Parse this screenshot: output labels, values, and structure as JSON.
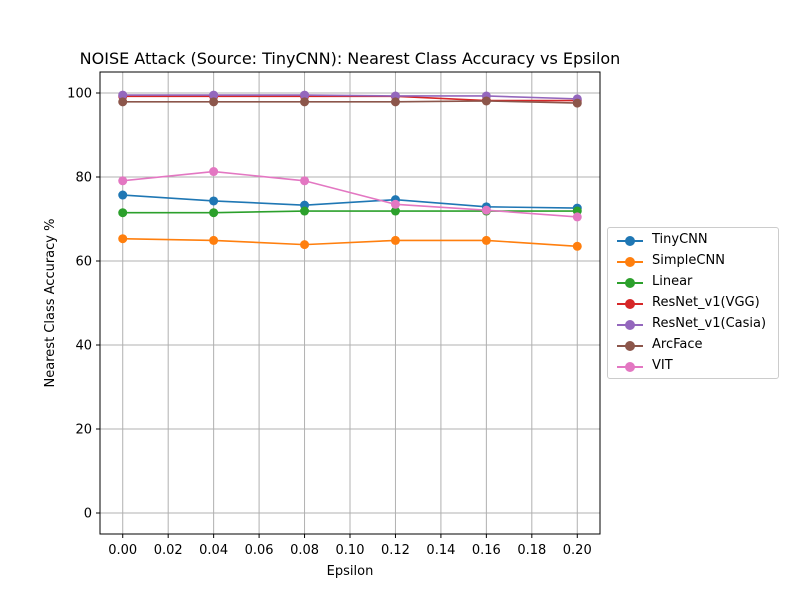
{
  "chart_data": {
    "type": "line",
    "title": "NOISE Attack (Source: TinyCNN): Nearest Class Accuracy vs Epsilon",
    "xlabel": "Epsilon",
    "ylabel": "Nearest Class Accuracy %",
    "xlim": [
      -0.01,
      0.21
    ],
    "ylim": [
      -5,
      105
    ],
    "xticks": [
      "0.00",
      "0.02",
      "0.04",
      "0.06",
      "0.08",
      "0.10",
      "0.12",
      "0.14",
      "0.16",
      "0.18",
      "0.20"
    ],
    "yticks": [
      "0",
      "20",
      "40",
      "60",
      "80",
      "100"
    ],
    "grid": true,
    "legend_position": "center-right outside",
    "x": [
      0.0,
      0.04,
      0.08,
      0.12,
      0.16,
      0.2
    ],
    "series": [
      {
        "name": "TinyCNN",
        "color": "#1f77b4",
        "values": [
          75.7,
          74.3,
          73.3,
          74.6,
          72.9,
          72.6
        ]
      },
      {
        "name": "SimpleCNN",
        "color": "#ff7f0e",
        "values": [
          65.3,
          64.9,
          63.9,
          64.9,
          64.9,
          63.5
        ]
      },
      {
        "name": "Linear",
        "color": "#2ca02c",
        "values": [
          71.5,
          71.5,
          71.9,
          71.9,
          71.9,
          71.9
        ]
      },
      {
        "name": "ResNet_v1(VGG)",
        "color": "#d62728",
        "values": [
          99.2,
          99.2,
          99.2,
          99.2,
          98.2,
          98.2
        ]
      },
      {
        "name": "ResNet_v1(Casia)",
        "color": "#9467bd",
        "values": [
          99.5,
          99.5,
          99.5,
          99.3,
          99.3,
          98.6
        ]
      },
      {
        "name": "ArcFace",
        "color": "#8c564b",
        "values": [
          97.9,
          97.9,
          97.9,
          97.9,
          98.1,
          97.6
        ]
      },
      {
        "name": "VIT",
        "color": "#e377c2",
        "values": [
          79.1,
          81.3,
          79.1,
          73.5,
          72.1,
          70.5
        ]
      }
    ]
  }
}
